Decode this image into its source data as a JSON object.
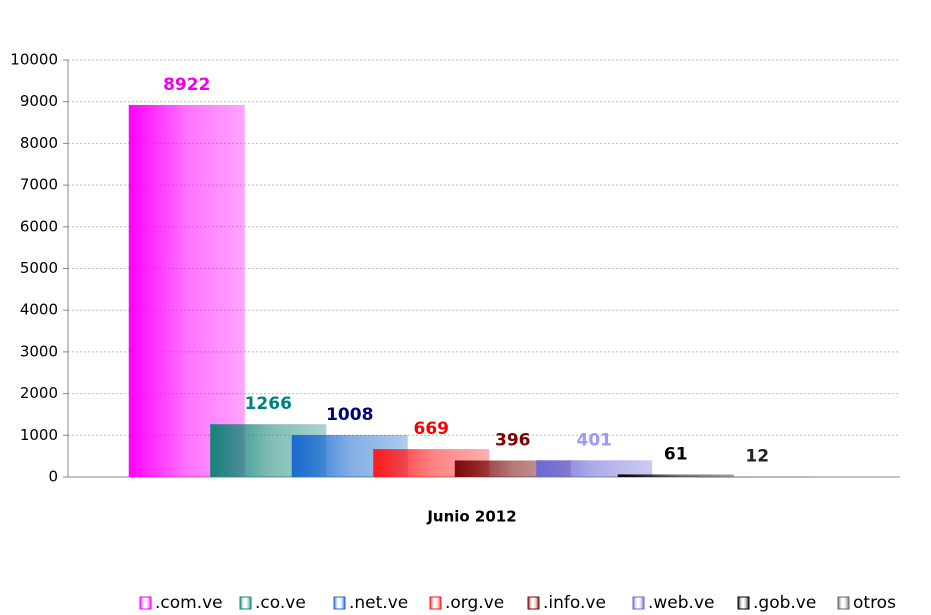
{
  "chart_data": {
    "type": "bar",
    "categories": [
      "Junio 2012"
    ],
    "series": [
      {
        "name": ".com.ve",
        "color": "#ff00ff",
        "label_color": "#ee00ee",
        "values": [
          8922
        ]
      },
      {
        "name": ".co.ve",
        "color": "#138478",
        "label_color": "#008080",
        "values": [
          1266
        ]
      },
      {
        "name": ".net.ve",
        "color": "#1a6ad0",
        "label_color": "#000080",
        "values": [
          1008
        ]
      },
      {
        "name": ".org.ve",
        "color": "#ff1a1a",
        "label_color": "#ff0000",
        "values": [
          669
        ]
      },
      {
        "name": ".info.ve",
        "color": "#7a0a0a",
        "label_color": "#800000",
        "values": [
          396
        ]
      },
      {
        "name": ".web.ve",
        "color": "#6a6ad8",
        "label_color": "#9999ff",
        "values": [
          401
        ]
      },
      {
        "name": ".gob.ve",
        "color": "#000000",
        "label_color": "#000000",
        "values": [
          61
        ]
      },
      {
        "name": "otros",
        "color": "#666666",
        "label_color": "#222222",
        "values": [
          12
        ]
      }
    ],
    "ylim": [
      0,
      10000
    ],
    "yticks": [
      0,
      1000,
      2000,
      3000,
      4000,
      5000,
      6000,
      7000,
      8000,
      9000,
      10000
    ],
    "grid": true,
    "legend": "bottom"
  }
}
